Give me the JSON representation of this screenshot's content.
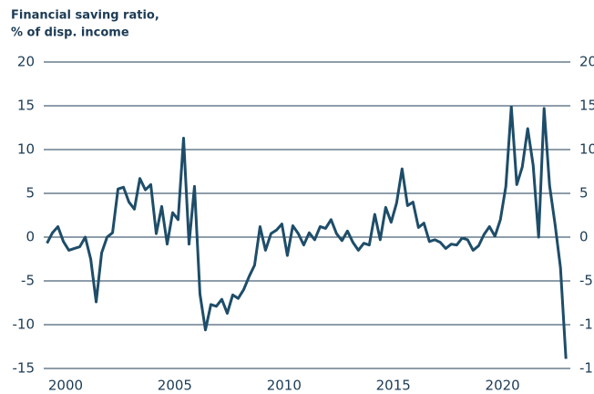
{
  "chart_data": {
    "type": "line",
    "title": [
      "Financial saving ratio,",
      "% of disp. income"
    ],
    "x": [
      1999.15,
      1999.4,
      1999.65,
      1999.9,
      2000.15,
      2000.4,
      2000.65,
      2000.9,
      2001.15,
      2001.4,
      2001.65,
      2001.9,
      2002.15,
      2002.4,
      2002.65,
      2002.9,
      2003.15,
      2003.4,
      2003.65,
      2003.9,
      2004.15,
      2004.4,
      2004.65,
      2004.9,
      2005.15,
      2005.4,
      2005.65,
      2005.9,
      2006.15,
      2006.4,
      2006.65,
      2006.9,
      2007.15,
      2007.4,
      2007.65,
      2007.9,
      2008.15,
      2008.4,
      2008.65,
      2008.9,
      2009.15,
      2009.4,
      2009.65,
      2009.9,
      2010.15,
      2010.4,
      2010.65,
      2010.9,
      2011.15,
      2011.4,
      2011.65,
      2011.9,
      2012.15,
      2012.4,
      2012.65,
      2012.9,
      2013.15,
      2013.4,
      2013.65,
      2013.9,
      2014.15,
      2014.4,
      2014.65,
      2014.9,
      2015.15,
      2015.4,
      2015.65,
      2015.9,
      2016.15,
      2016.4,
      2016.65,
      2016.9,
      2017.15,
      2017.4,
      2017.65,
      2017.9,
      2018.15,
      2018.4,
      2018.65,
      2018.9,
      2019.15,
      2019.4,
      2019.65,
      2019.9,
      2020.15,
      2020.4,
      2020.65,
      2020.9,
      2021.15,
      2021.4,
      2021.65,
      2021.9,
      2022.15,
      2022.4,
      2022.65,
      2022.9
    ],
    "series": [
      {
        "color": "#1e4d69",
        "values": [
          -0.7,
          0.5,
          1.2,
          -0.5,
          -1.5,
          -1.3,
          -1.1,
          0,
          -2.5,
          -7.4,
          -1.8,
          0,
          0.5,
          5.5,
          5.7,
          4,
          3.2,
          6.7,
          5.4,
          6,
          0.4,
          3.5,
          -0.8,
          2.8,
          2,
          11.3,
          -0.8,
          5.8,
          -6.5,
          -10.6,
          -7.7,
          -7.9,
          -7.1,
          -8.7,
          -6.6,
          -7,
          -6,
          -4.5,
          -3.2,
          1.2,
          -1.5,
          0.4,
          0.8,
          1.5,
          -2.1,
          1.3,
          0.4,
          -0.9,
          0.5,
          -0.3,
          1.2,
          1,
          2,
          0.4,
          -0.4,
          0.7,
          -0.6,
          -1.5,
          -0.7,
          -0.9,
          2.6,
          -0.3,
          3.4,
          1.7,
          3.9,
          7.8,
          3.6,
          4,
          1.1,
          1.6,
          -0.5,
          -0.3,
          -0.6,
          -1.3,
          -0.8,
          -0.9,
          -0.1,
          -0.3,
          -1.5,
          -1,
          0.3,
          1.2,
          0.1,
          2,
          5.8,
          14.9,
          6,
          8,
          12.4,
          8.2,
          0,
          14.7,
          5.9,
          1.5,
          -3.5,
          -13.9
        ]
      }
    ],
    "xlim": [
      1999,
      2023.1
    ],
    "xticks": [
      2000,
      2005,
      2010,
      2015,
      2020
    ],
    "ylim": [
      -15,
      20
    ],
    "yticks": [
      -15,
      -10,
      -5,
      0,
      5,
      10,
      15,
      20
    ],
    "grid": true
  }
}
